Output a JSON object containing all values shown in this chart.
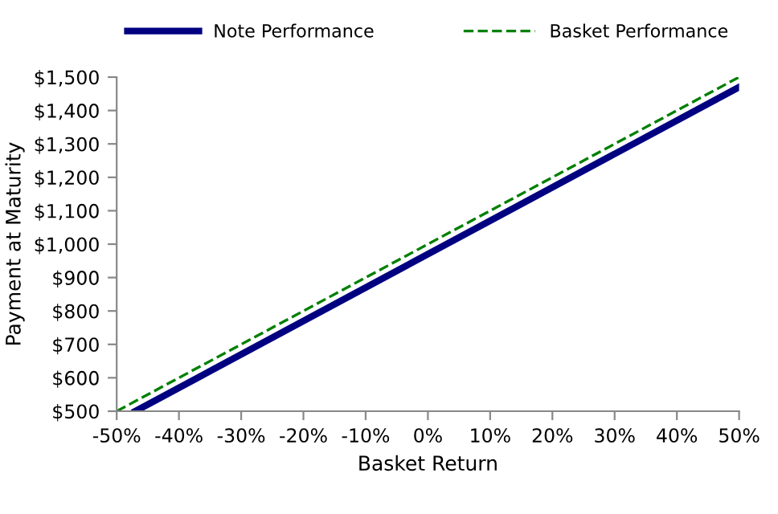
{
  "chart_data": {
    "type": "line",
    "xlabel": "Basket Return",
    "ylabel": "Payment at Maturity",
    "series": [
      {
        "name": "Note Performance",
        "color": "#000080",
        "x": [
          -47,
          50
        ],
        "values": [
          500,
          1470
        ],
        "line_style": "solid"
      },
      {
        "name": "Basket Performance",
        "color": "#008000",
        "x": [
          -50,
          50
        ],
        "values": [
          500,
          1500
        ],
        "line_style": "dashed"
      }
    ],
    "xlim": [
      -50,
      50
    ],
    "xticks": [
      {
        "value": -50,
        "label": "-50%"
      },
      {
        "value": -40,
        "label": "-40%"
      },
      {
        "value": -30,
        "label": "-30%"
      },
      {
        "value": -20,
        "label": "-20%"
      },
      {
        "value": -10,
        "label": "-10%"
      },
      {
        "value": 0,
        "label": "0%"
      },
      {
        "value": 10,
        "label": "10%"
      },
      {
        "value": 20,
        "label": "20%"
      },
      {
        "value": 30,
        "label": "30%"
      },
      {
        "value": 40,
        "label": "40%"
      },
      {
        "value": 50,
        "label": "50%"
      }
    ],
    "ylim": [
      500,
      1500
    ],
    "yticks": [
      {
        "value": 500,
        "label": "$500"
      },
      {
        "value": 600,
        "label": "$600"
      },
      {
        "value": 700,
        "label": "$700"
      },
      {
        "value": 800,
        "label": "$800"
      },
      {
        "value": 900,
        "label": "$900"
      },
      {
        "value": 1000,
        "label": "$1,000"
      },
      {
        "value": 1100,
        "label": "$1,100"
      },
      {
        "value": 1200,
        "label": "$1,200"
      },
      {
        "value": 1300,
        "label": "$1,300"
      },
      {
        "value": 1400,
        "label": "$1,400"
      },
      {
        "value": 1500,
        "label": "$1,500"
      }
    ],
    "grid": false,
    "legend": "top",
    "marker": "none"
  }
}
